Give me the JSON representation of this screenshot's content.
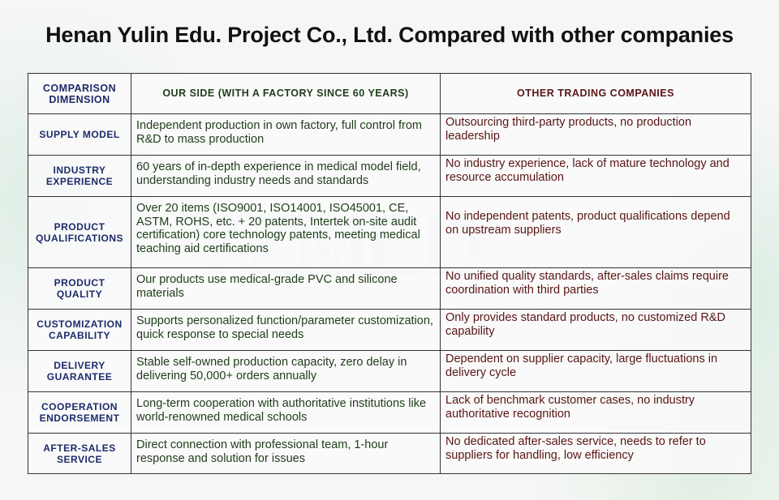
{
  "title": "Henan Yulin Edu. Project Co., Ltd. Compared with other companies",
  "watermark": "YZMED",
  "colors": {
    "dimension": "#1c2a6a",
    "ours": "#1f3d1a",
    "other": "#5a1515"
  },
  "header": {
    "dimension": "COMPARISON DIMENSION",
    "ours": "OUR SIDE (WITH A FACTORY SINCE 60 YEARS)",
    "other": "OTHER TRADING COMPANIES"
  },
  "rows": [
    {
      "dimension": "SUPPLY MODEL",
      "ours": "Independent production in own factory, full control from R&D to mass production",
      "other": "Outsourcing third-party products, no production leadership"
    },
    {
      "dimension": "INDUSTRY EXPERIENCE",
      "ours": "60 years of in-depth experience in medical model field, understanding industry needs and standards",
      "other": "No industry experience, lack of mature technology and resource accumulation"
    },
    {
      "dimension": "PRODUCT QUALIFICATIONS",
      "ours": "Over 20 items (ISO9001, ISO14001, ISO45001, CE, ASTM, ROHS, etc. + 20 patents, Intertek on-site audit certification) core technology patents, meeting medical teaching aid certifications",
      "other": "No independent patents, product qualifications depend on upstream suppliers"
    },
    {
      "dimension": "PRODUCT QUALITY",
      "ours": "Our products use medical-grade PVC and silicone materials",
      "other": "No unified quality standards, after-sales claims require coordination with third parties"
    },
    {
      "dimension": "CUSTOMIZATION CAPABILITY",
      "ours": "Supports personalized function/parameter customization, quick response to special needs",
      "other": "Only provides standard products, no customized R&D capability"
    },
    {
      "dimension": "DELIVERY GUARANTEE",
      "ours": "Stable self-owned production capacity, zero delay in delivering 50,000+ orders annually",
      "other": "Dependent on supplier capacity, large fluctuations in delivery cycle"
    },
    {
      "dimension": "COOPERATION ENDORSEMENT",
      "ours": "Long-term cooperation with authoritative institutions like world-renowned medical schools",
      "other": "Lack of benchmark customer cases, no industry authoritative recognition"
    },
    {
      "dimension": "AFTER-SALES SERVICE",
      "ours": "Direct connection with professional team, 1-hour response and solution for issues",
      "other": "No dedicated after-sales service, needs to refer to suppliers for handling, low efficiency"
    }
  ]
}
